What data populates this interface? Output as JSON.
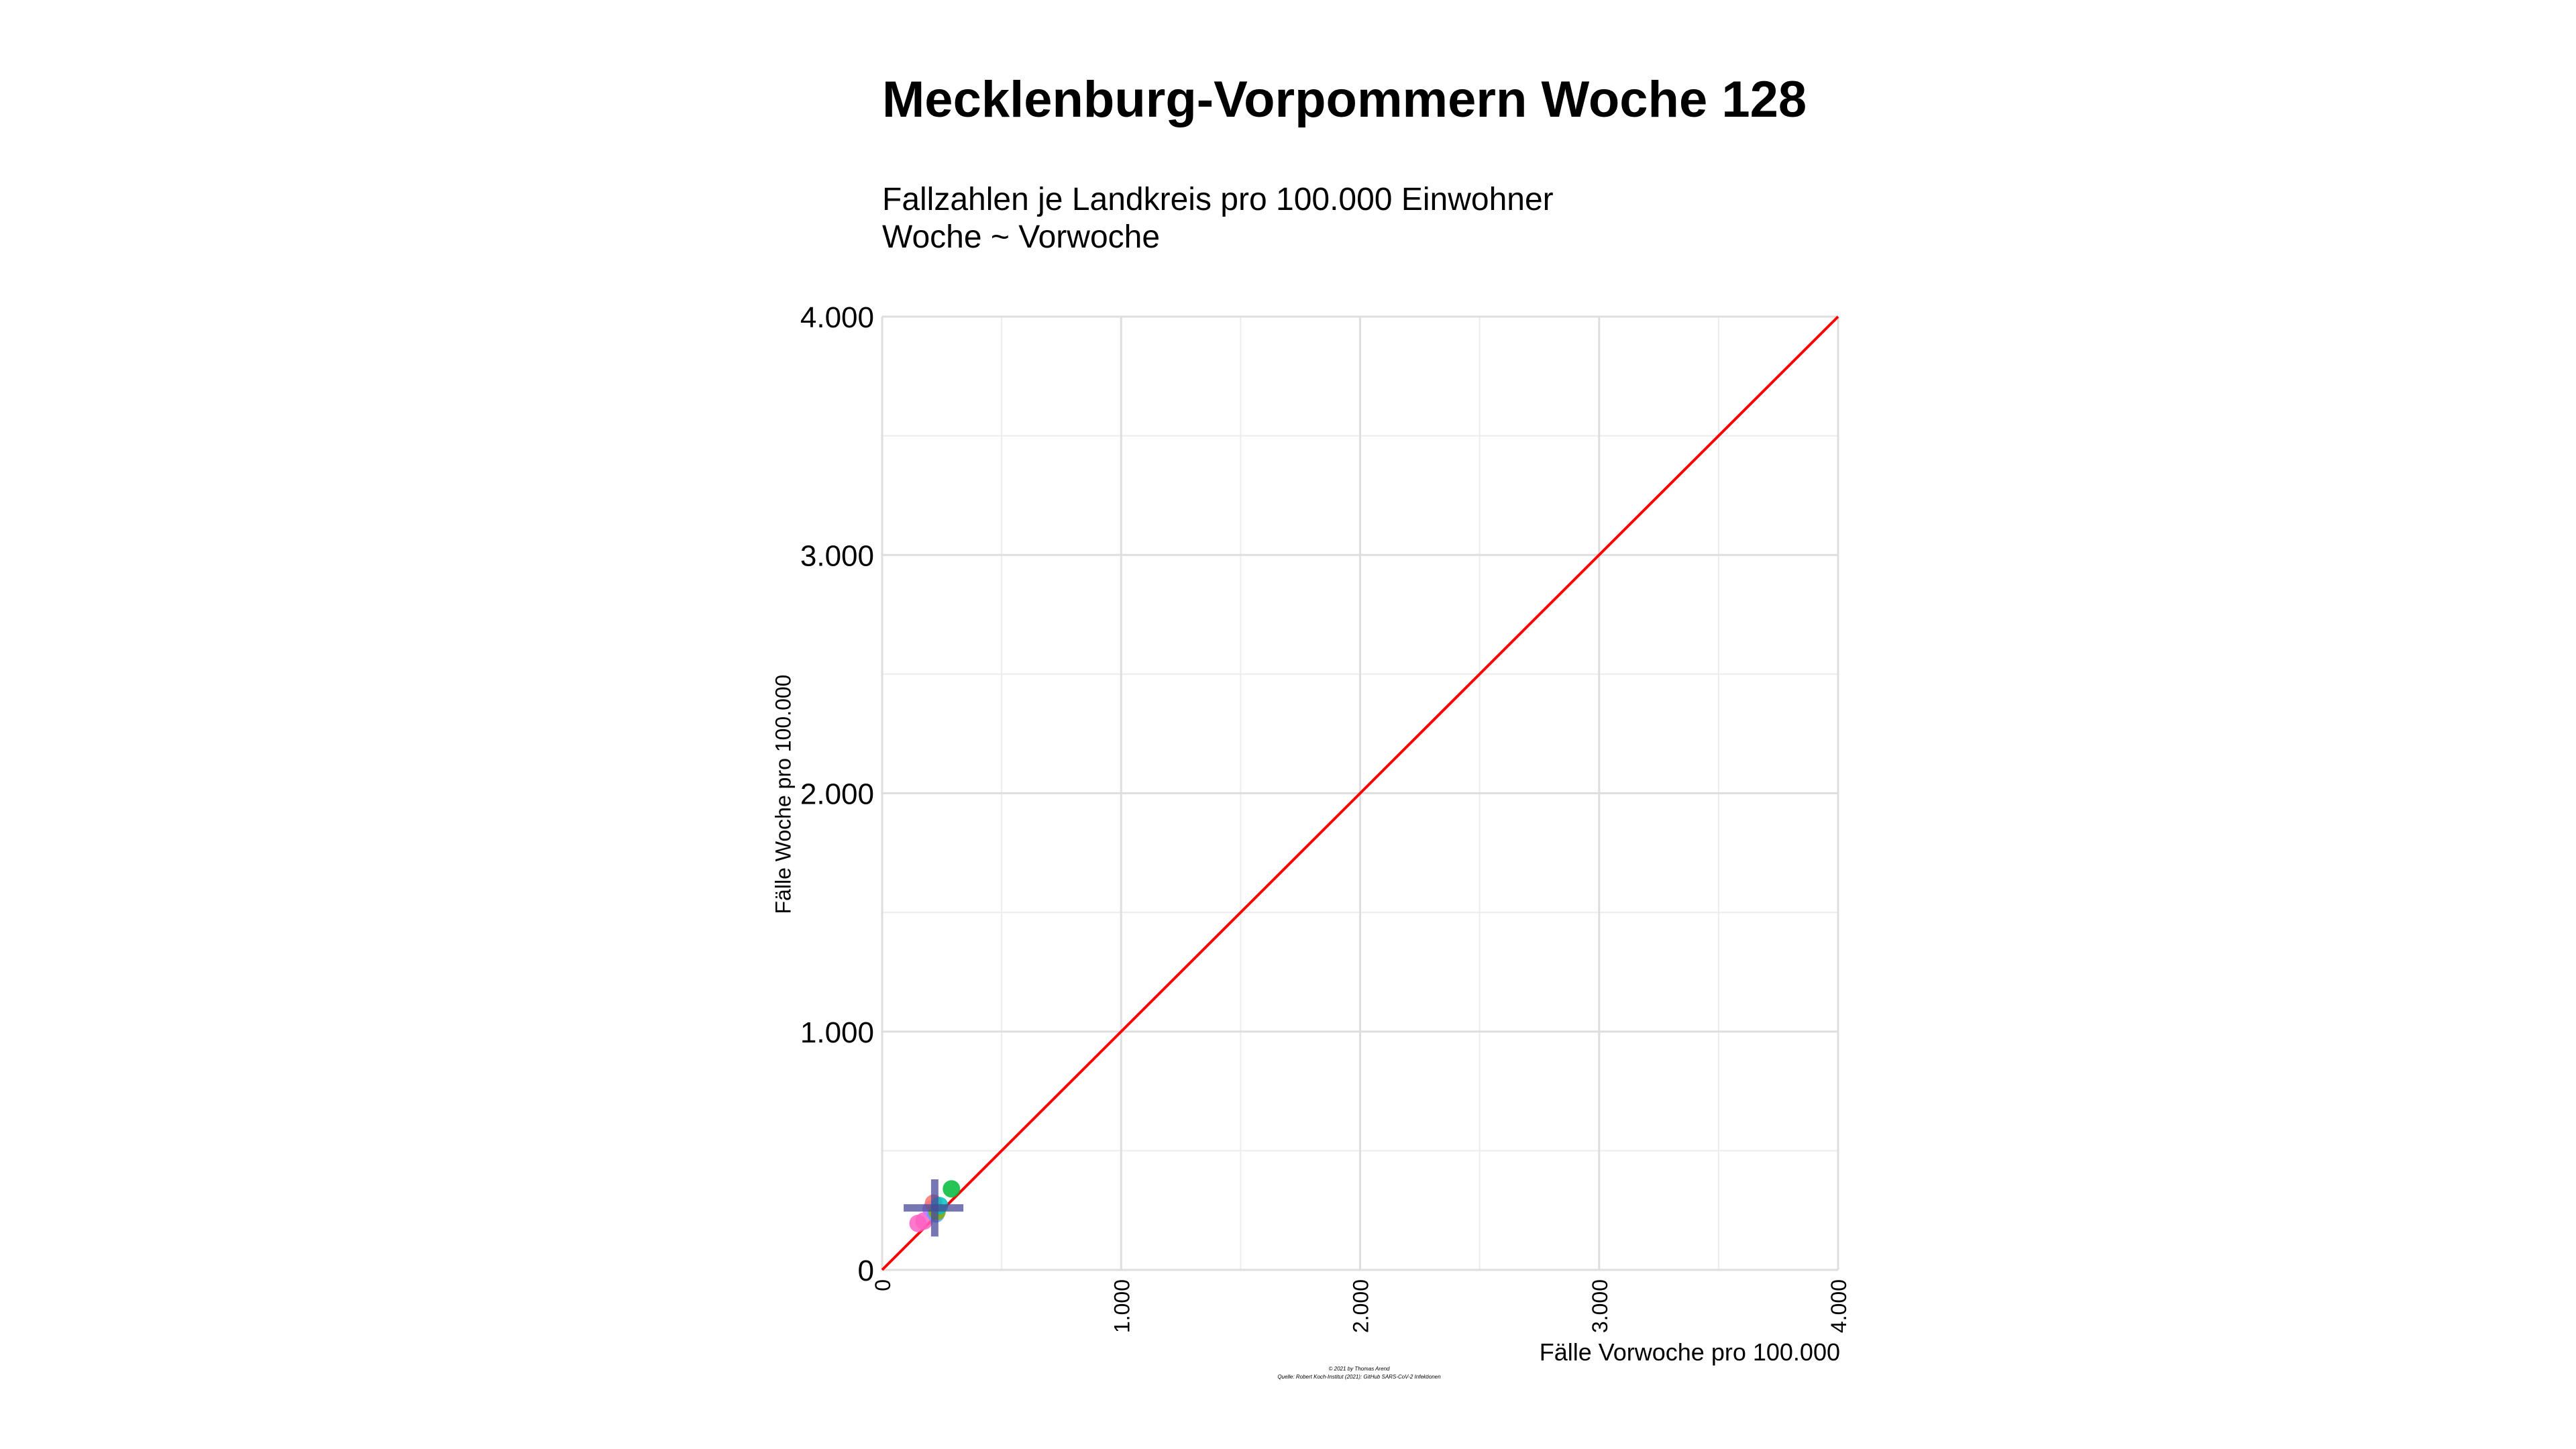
{
  "chart_data": {
    "type": "scatter",
    "title": "Mecklenburg-Vorpommern Woche 128",
    "subtitle_lines": [
      "Fallzahlen je Landkreis pro 100.000 Einwohner",
      "Woche ~ Vorwoche"
    ],
    "xlabel": "Fälle Vorwoche pro 100.000",
    "ylabel": "Fälle Woche pro 100.000",
    "xlim": [
      0,
      4000
    ],
    "ylim": [
      0,
      4000
    ],
    "x_ticks": [
      0,
      1000,
      2000,
      3000,
      4000
    ],
    "x_tick_labels": [
      "0",
      "1.000",
      "2.000",
      "3.000",
      "4.000"
    ],
    "y_ticks": [
      0,
      1000,
      2000,
      3000,
      4000
    ],
    "y_tick_labels": [
      "0",
      "1.000",
      "2.000",
      "3.000",
      "4.000"
    ],
    "minor_grid": [
      500,
      1500,
      2500,
      3500
    ],
    "grid": true,
    "reference_line": {
      "from": [
        0,
        0
      ],
      "to": [
        4000,
        4000
      ],
      "color": "#ff0000"
    },
    "points": [
      {
        "x": 150,
        "y": 195,
        "color": "#ff61c3"
      },
      {
        "x": 175,
        "y": 205,
        "color": "#ff61c3"
      },
      {
        "x": 205,
        "y": 255,
        "color": "#c77cff"
      },
      {
        "x": 215,
        "y": 280,
        "color": "#f8766d"
      },
      {
        "x": 225,
        "y": 235,
        "color": "#619cff"
      },
      {
        "x": 230,
        "y": 245,
        "color": "#7cae00"
      },
      {
        "x": 240,
        "y": 270,
        "color": "#00bfc4"
      },
      {
        "x": 290,
        "y": 340,
        "color": "#00ba38"
      }
    ],
    "mean_cross": {
      "x": 220,
      "y": 260,
      "x_range": [
        90,
        340
      ],
      "y_range": [
        140,
        380
      ],
      "color": "#4a4a9a"
    },
    "caption_lines": [
      "© 2021 by Thomas Arend",
      "Quelle: Robert Koch-Institut (2021): GitHub SARS-CoV-2 Infektionen"
    ]
  }
}
